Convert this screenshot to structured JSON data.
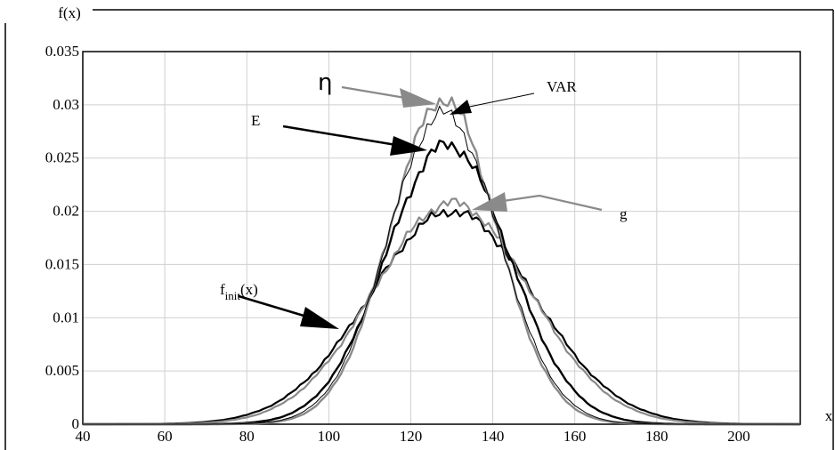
{
  "chart_data": {
    "type": "line",
    "xlabel": "x",
    "ylabel": "f(x)",
    "xlim": [
      40,
      215
    ],
    "ylim": [
      0,
      0.035
    ],
    "x_ticks": [
      "40",
      "60",
      "80",
      "100",
      "120",
      "140",
      "160",
      "180",
      "200"
    ],
    "y_ticks": [
      "0",
      "0.005",
      "0.01",
      "0.015",
      "0.02",
      "0.025",
      "0.03",
      "0.035"
    ],
    "grid": true,
    "colors": {
      "black": "#000000",
      "gray": "#8a8a8a",
      "thin": "#000000"
    },
    "series": [
      {
        "key": "finit",
        "color": "black",
        "width": 2.2,
        "mu": 130,
        "sigma": 20,
        "peak": 0.02
      },
      {
        "key": "g",
        "color": "gray",
        "width": 2.2,
        "mu": 130,
        "sigma": 19,
        "peak": 0.0208
      },
      {
        "key": "E",
        "color": "black",
        "width": 2.4,
        "mu": 129,
        "sigma": 15,
        "peak": 0.0263
      },
      {
        "key": "eta",
        "color": "gray",
        "width": 2.4,
        "mu": 128,
        "sigma": 13,
        "peak": 0.0305
      },
      {
        "key": "VAR",
        "color": "thin",
        "width": 1.0,
        "mu": 128,
        "sigma": 13.5,
        "peak": 0.0292
      }
    ],
    "annotations": {
      "eta": "η",
      "var": "VAR",
      "e": "E",
      "g": "g",
      "finit_main": "f",
      "finit_sub": "init",
      "finit_tail": "(x)"
    }
  }
}
